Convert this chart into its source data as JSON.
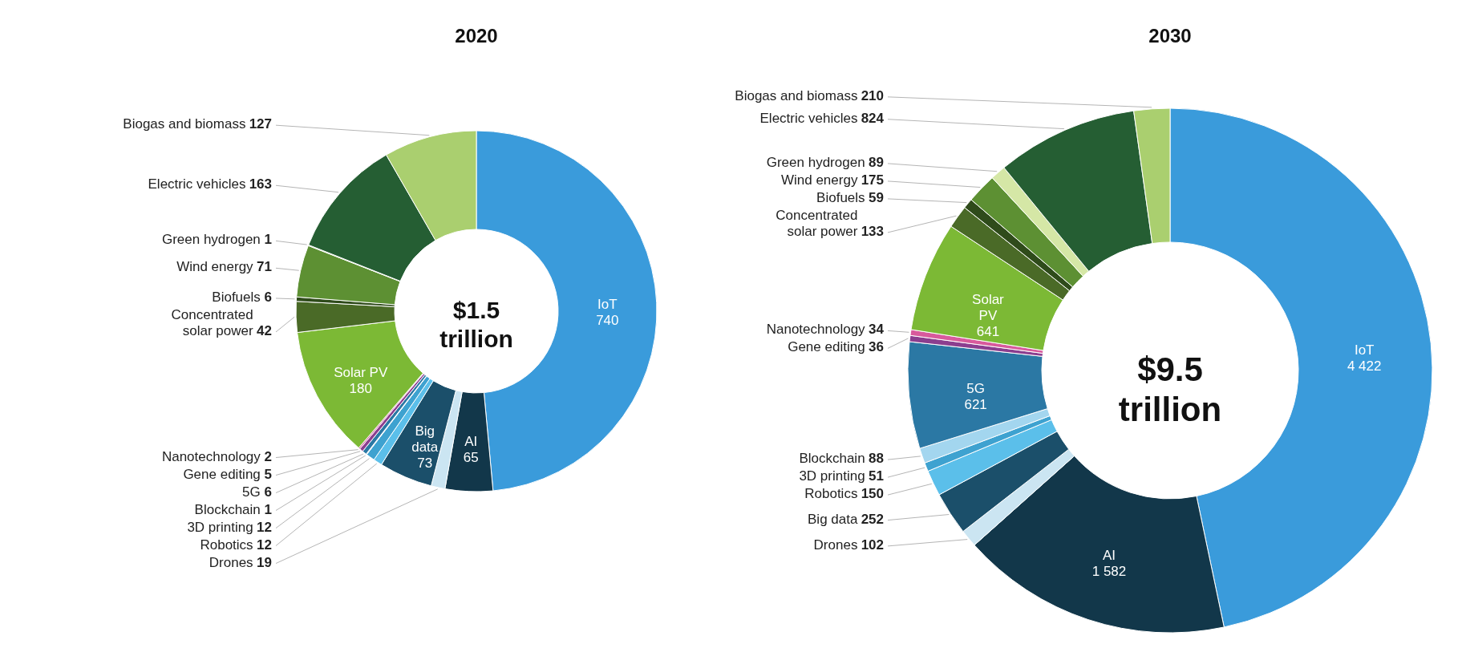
{
  "chart_data": [
    {
      "type": "donut",
      "title": "2020",
      "annotations": [
        "$1.5 trillion"
      ],
      "categories": [
        "IoT",
        "AI",
        "Drones",
        "Big data",
        "Robotics",
        "3D printing",
        "Blockchain",
        "5G",
        "Gene editing",
        "Nanotechnology",
        "Solar PV",
        "Concentrated solar power",
        "Biofuels",
        "Wind energy",
        "Green hydrogen",
        "Electric vehicles",
        "Biogas and biomass"
      ],
      "values": [
        740,
        65,
        19,
        73,
        12,
        12,
        1,
        6,
        5,
        2,
        180,
        42,
        6,
        71,
        1,
        163,
        127
      ],
      "value_labels": [
        "740",
        "65",
        "19",
        "73",
        "12",
        "12",
        "1",
        "6",
        "5",
        "2",
        "180",
        "42",
        "6",
        "71",
        "1",
        "163",
        "127"
      ],
      "colors": [
        "#3a9bdb",
        "#12374a",
        "#cbe5f2",
        "#1b4f6a",
        "#5bbfea",
        "#3ea2d0",
        "#a3d6ef",
        "#2b78a4",
        "#8b3e8f",
        "#d85a9c",
        "#7cb935",
        "#4a6a27",
        "#2f4b1b",
        "#5d9033",
        "#d5e7a6",
        "#255e33",
        "#aacf6f"
      ]
    },
    {
      "type": "donut",
      "title": "2030",
      "annotations": [
        "$9.5 trillion"
      ],
      "categories": [
        "IoT",
        "AI",
        "Drones",
        "Big data",
        "Robotics",
        "3D printing",
        "Blockchain",
        "5G",
        "Gene editing",
        "Nanotechnology",
        "Solar PV",
        "Concentrated solar power",
        "Biofuels",
        "Wind energy",
        "Green hydrogen",
        "Electric vehicles",
        "Biogas and biomass"
      ],
      "values": [
        4422,
        1582,
        102,
        252,
        150,
        51,
        88,
        621,
        36,
        34,
        641,
        133,
        59,
        175,
        89,
        824,
        210
      ],
      "value_labels": [
        "4 422",
        "1 582",
        "102",
        "252",
        "150",
        "51",
        "88",
        "621",
        "36",
        "34",
        "641",
        "133",
        "59",
        "175",
        "89",
        "824",
        "210"
      ],
      "colors": [
        "#3a9bdb",
        "#12374a",
        "#cbe5f2",
        "#1b4f6a",
        "#5bbfea",
        "#3ea2d0",
        "#a3d6ef",
        "#2b78a4",
        "#8b3e8f",
        "#d85a9c",
        "#7cb935",
        "#4a6a27",
        "#2f4b1b",
        "#5d9033",
        "#d5e7a6",
        "#255e33",
        "#aacf6f"
      ]
    }
  ]
}
